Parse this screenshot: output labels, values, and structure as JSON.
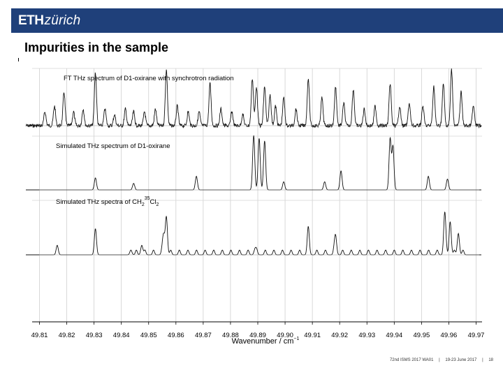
{
  "header": {
    "logo_bold": "ETH",
    "logo_italic": "zürich",
    "brand_color": "#1f407a"
  },
  "slide": {
    "title": "Impurities in the sample"
  },
  "footer": {
    "event": "72nd ISMS 2017 WA01",
    "sep1": "|",
    "date": "19-23 June 2017",
    "sep2": "|",
    "page": "18"
  },
  "chart_data": {
    "type": "line",
    "xlabel": "Wavenumber / cm",
    "xlim": [
      49.805,
      49.972
    ],
    "x_ticks": [
      49.81,
      49.82,
      49.83,
      49.84,
      49.85,
      49.86,
      49.87,
      49.88,
      49.89,
      49.9,
      49.91,
      49.92,
      49.93,
      49.94,
      49.95,
      49.96,
      49.97
    ],
    "x_tick_labels": [
      "49.81",
      "49.82",
      "49.83",
      "49.84",
      "49.85",
      "49.86",
      "49.87",
      "49.88",
      "49.89",
      "49.90",
      "49.91",
      "49.92",
      "49.93",
      "49.94",
      "49.95",
      "49.96",
      "49.97"
    ],
    "grid": true,
    "panels": [
      {
        "name": "experimental",
        "title": "FT THz spectrum of D1-oxirane with synchrotron radiation",
        "noise": 0.08,
        "peaks": [
          [
            49.812,
            0.25
          ],
          [
            49.8155,
            0.35
          ],
          [
            49.819,
            0.6
          ],
          [
            49.8225,
            0.25
          ],
          [
            49.826,
            0.3
          ],
          [
            49.8305,
            0.95
          ],
          [
            49.834,
            0.3
          ],
          [
            49.8375,
            0.2
          ],
          [
            49.8415,
            0.3
          ],
          [
            49.8445,
            0.25
          ],
          [
            49.8485,
            0.25
          ],
          [
            49.8525,
            0.3
          ],
          [
            49.8565,
            1.0
          ],
          [
            49.8605,
            0.35
          ],
          [
            49.8645,
            0.25
          ],
          [
            49.8685,
            0.25
          ],
          [
            49.8725,
            0.75
          ],
          [
            49.8765,
            0.3
          ],
          [
            49.8805,
            0.25
          ],
          [
            49.8845,
            0.2
          ],
          [
            49.888,
            0.85
          ],
          [
            49.8895,
            0.7
          ],
          [
            49.8925,
            0.7
          ],
          [
            49.8945,
            0.55
          ],
          [
            49.8965,
            0.35
          ],
          [
            49.8995,
            0.5
          ],
          [
            49.904,
            0.3
          ],
          [
            49.9085,
            0.85
          ],
          [
            49.9135,
            0.5
          ],
          [
            49.9185,
            0.7
          ],
          [
            49.9215,
            0.4
          ],
          [
            49.925,
            0.65
          ],
          [
            49.929,
            0.3
          ],
          [
            49.933,
            0.35
          ],
          [
            49.9385,
            0.75
          ],
          [
            49.942,
            0.35
          ],
          [
            49.9455,
            0.4
          ],
          [
            49.9505,
            0.35
          ],
          [
            49.9545,
            0.7
          ],
          [
            49.958,
            0.75
          ],
          [
            49.961,
            1.0
          ],
          [
            49.9645,
            0.6
          ],
          [
            49.969,
            0.35
          ]
        ]
      },
      {
        "name": "simulated-d1-oxirane",
        "title": "Simulated THz spectrum of D1-oxirane",
        "peaks": [
          [
            49.8305,
            0.22
          ],
          [
            49.8445,
            0.12
          ],
          [
            49.8675,
            0.25
          ],
          [
            49.8885,
            1.0
          ],
          [
            49.8905,
            0.95
          ],
          [
            49.8925,
            0.9
          ],
          [
            49.8995,
            0.15
          ],
          [
            49.9145,
            0.15
          ],
          [
            49.9205,
            0.35
          ],
          [
            49.9385,
            0.95
          ],
          [
            49.9395,
            0.9
          ],
          [
            49.9525,
            0.25
          ],
          [
            49.9595,
            0.2
          ]
        ]
      },
      {
        "name": "simulated-ch2cl2",
        "title_main": "Simulated THz spectra of CH",
        "title_sub1": "2",
        "title_sup": "35",
        "title_mid": "Cl",
        "title_sub2": "2",
        "peaks": [
          [
            49.8165,
            0.2
          ],
          [
            49.8305,
            0.55
          ],
          [
            49.8435,
            0.1
          ],
          [
            49.8475,
            0.2
          ],
          [
            49.8555,
            0.4
          ],
          [
            49.8565,
            0.8
          ],
          [
            49.889,
            0.12
          ],
          [
            49.9085,
            0.5
          ],
          [
            49.9185,
            0.4
          ],
          [
            49.9585,
            0.85
          ],
          [
            49.9605,
            0.7
          ],
          [
            49.9635,
            0.45
          ]
        ],
        "comb_start": 49.8455,
        "comb_spacing": 0.00315,
        "comb_end": 49.966,
        "comb_height": 0.1
      }
    ]
  }
}
